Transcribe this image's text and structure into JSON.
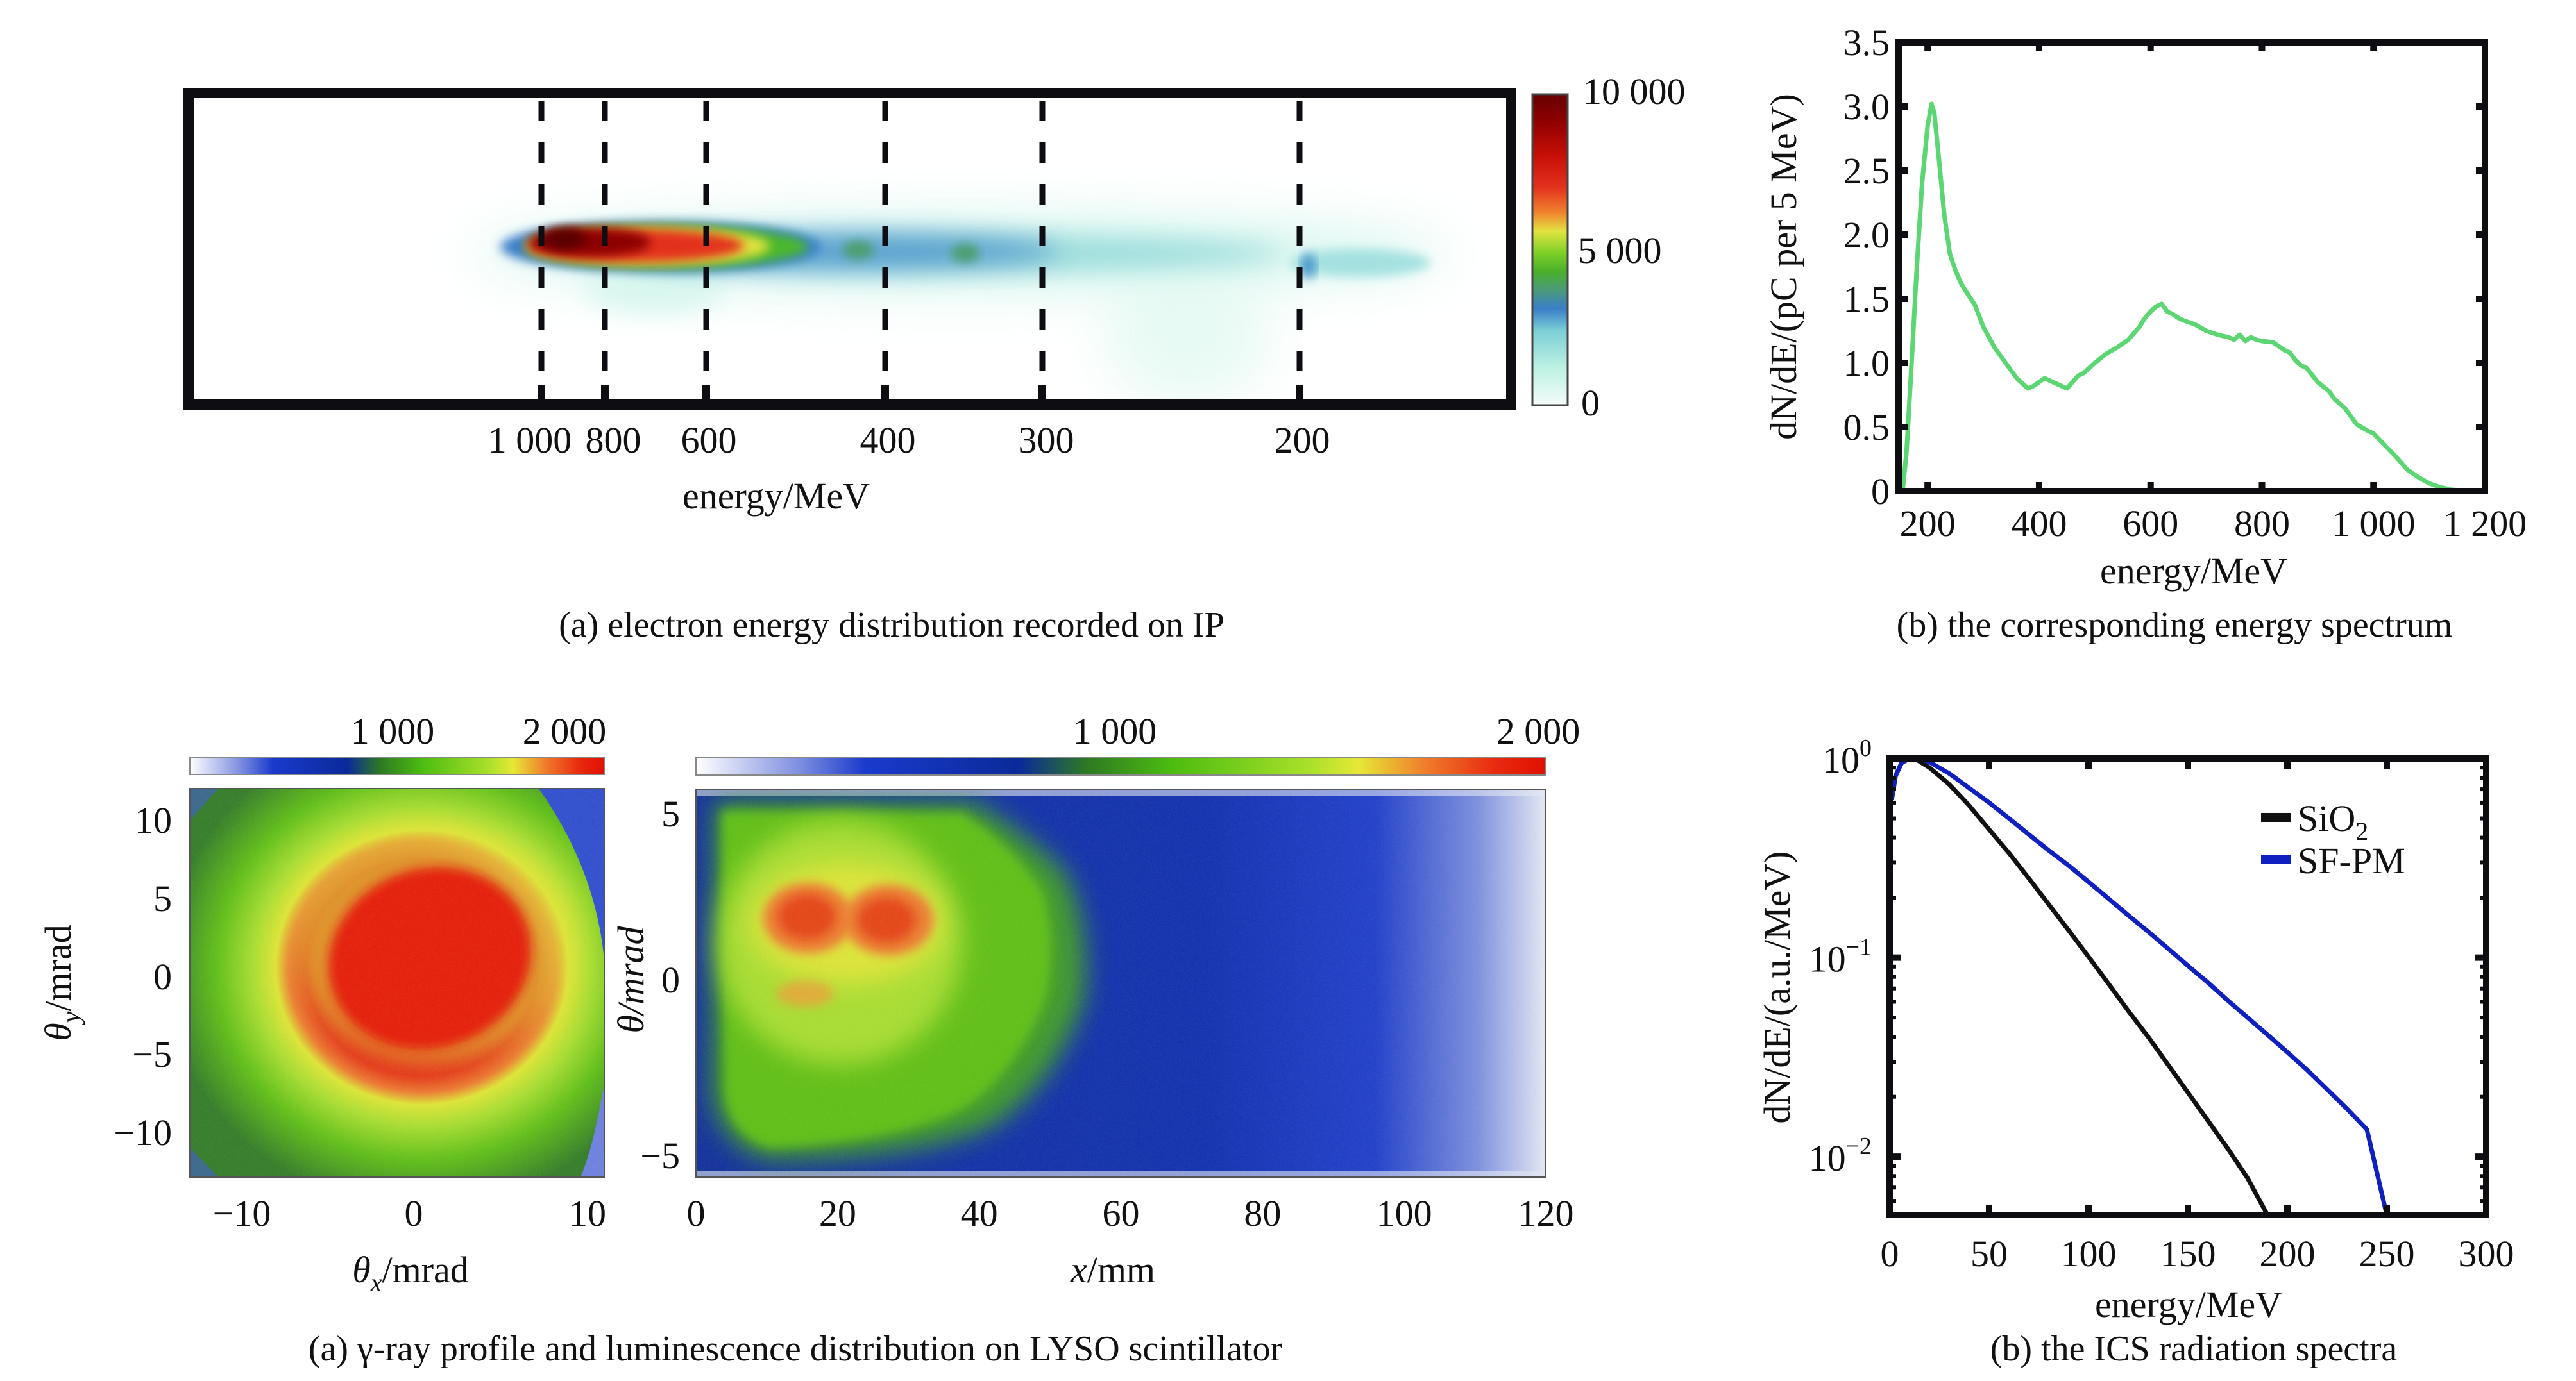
{
  "figure": {
    "panels": {
      "top_left": {
        "caption": "(a) electron energy distribution recorded on IP",
        "xlabel": "energy/MeV",
        "energy_markers": [
          "1 000",
          "800",
          "600",
          "400",
          "300",
          "200"
        ],
        "colorbar": {
          "ticks": [
            "10 000",
            "5 000",
            "0"
          ],
          "range": [
            0,
            10000
          ]
        }
      },
      "top_right": {
        "caption": "(b) the corresponding energy spectrum"
      },
      "bottom_left": {
        "caption": "(a) γ-ray profile and luminescence distribution on LYSO scintillator",
        "profile": {
          "xlabel_main": "θ",
          "xlabel_sub": "x",
          "xlabel_unit": "/mrad",
          "ylabel_main": "θ",
          "ylabel_sub": "y",
          "ylabel_unit": "/mrad",
          "xticks": [
            "−10",
            "0",
            "10"
          ],
          "yticks": [
            "10",
            "5",
            "0",
            "−5",
            "−10"
          ],
          "colorbar_ticks": [
            "1 000",
            "2 000"
          ]
        },
        "luminescence": {
          "xlabel_main": "x",
          "xlabel_unit": "/mm",
          "ylabel": "θ/mrad",
          "xticks": [
            "0",
            "20",
            "40",
            "60",
            "80",
            "100",
            "120"
          ],
          "yticks": [
            "5",
            "0",
            "−5"
          ],
          "colorbar_ticks": [
            "1 000",
            "2 000"
          ]
        }
      },
      "bottom_right": {
        "caption": "(b) the ICS radiation spectra"
      }
    }
  },
  "chart_data": [
    {
      "id": "electron-energy-heatmap",
      "type": "heatmap",
      "title": "(a) electron energy distribution recorded on IP",
      "xlabel": "energy/MeV",
      "ylabel": "",
      "x_tick_labels": [
        "1 000",
        "800",
        "600",
        "400",
        "300",
        "200"
      ],
      "x_tick_values": [
        1000,
        800,
        600,
        400,
        300,
        200
      ],
      "colorbar": {
        "min": 0,
        "max": 10000,
        "ticks": [
          0,
          5000,
          10000
        ],
        "tick_labels": [
          "0",
          "5 000",
          "10 000"
        ],
        "colormap": [
          "#f4fcfb",
          "#a6ecdc",
          "#5fb0d0",
          "#3a7fc8",
          "#4c9e6a",
          "#4cb82a",
          "#a5d92c",
          "#e2e340",
          "#f0822e",
          "#e3321e",
          "#c40f0a",
          "#6a0000"
        ]
      },
      "features": [
        {
          "desc": "peak intensity core",
          "energy_range_MeV": [
            600,
            1000
          ],
          "max_value": 10000
        },
        {
          "desc": "decaying tail",
          "energy_range_MeV": [
            200,
            600
          ],
          "value_range": [
            1000,
            4000
          ]
        },
        {
          "desc": "faint low-energy blob",
          "energy_range_MeV": [
            160,
            200
          ],
          "value_range": [
            500,
            1500
          ]
        }
      ],
      "grid": false,
      "dashed_markers_at_MeV": [
        1000,
        800,
        600,
        400,
        300,
        200
      ]
    },
    {
      "id": "energy-spectrum",
      "type": "line",
      "title": "(b) the corresponding energy spectrum",
      "xlabel": "energy/MeV",
      "ylabel": "dN/dE/(pC per 5 MeV)",
      "xlim": [
        148,
        1200
      ],
      "ylim": [
        0,
        3.5
      ],
      "xticks": [
        200,
        400,
        600,
        800,
        1000,
        1200
      ],
      "xtick_labels": [
        "200",
        "400",
        "600",
        "800",
        "1 000",
        "1 200"
      ],
      "yticks": [
        0,
        0.5,
        1.0,
        1.5,
        2.0,
        2.5,
        3.0,
        3.5
      ],
      "ytick_labels": [
        "0",
        "0.5",
        "1.0",
        "1.5",
        "2.0",
        "2.5",
        "3.0",
        "3.5"
      ],
      "grid": false,
      "series": [
        {
          "name": "spectrum",
          "color": "#5cd672",
          "x": [
            155,
            162,
            170,
            180,
            190,
            200,
            207,
            212,
            220,
            230,
            240,
            250,
            260,
            270,
            285,
            300,
            320,
            340,
            360,
            380,
            390,
            400,
            410,
            420,
            430,
            440,
            450,
            460,
            470,
            480,
            500,
            520,
            540,
            560,
            580,
            590,
            600,
            610,
            620,
            630,
            640,
            650,
            660,
            680,
            700,
            720,
            740,
            750,
            760,
            770,
            780,
            790,
            800,
            820,
            840,
            850,
            860,
            870,
            880,
            900,
            920,
            930,
            950,
            970,
            990,
            1000,
            1020,
            1040,
            1060,
            1080,
            1100,
            1120,
            1140,
            1160,
            1180,
            1200
          ],
          "y": [
            0.0,
            0.3,
            0.9,
            1.7,
            2.4,
            2.85,
            3.02,
            2.95,
            2.6,
            2.15,
            1.85,
            1.72,
            1.62,
            1.55,
            1.45,
            1.28,
            1.12,
            1.0,
            0.88,
            0.8,
            0.82,
            0.85,
            0.88,
            0.86,
            0.84,
            0.82,
            0.8,
            0.85,
            0.9,
            0.92,
            1.0,
            1.07,
            1.12,
            1.18,
            1.28,
            1.35,
            1.4,
            1.44,
            1.46,
            1.4,
            1.38,
            1.35,
            1.33,
            1.3,
            1.25,
            1.22,
            1.2,
            1.18,
            1.22,
            1.17,
            1.2,
            1.18,
            1.17,
            1.16,
            1.1,
            1.08,
            1.02,
            0.98,
            0.96,
            0.85,
            0.78,
            0.72,
            0.64,
            0.52,
            0.47,
            0.45,
            0.36,
            0.27,
            0.17,
            0.11,
            0.06,
            0.03,
            0.01,
            0.005,
            0.0,
            0.0
          ]
        }
      ]
    },
    {
      "id": "gamma-ray-profile",
      "type": "heatmap",
      "title": "γ-ray profile on LYSO scintillator",
      "xlabel": "θx/mrad",
      "ylabel": "θy/mrad",
      "xlim": [
        -13,
        11
      ],
      "ylim": [
        -13,
        12
      ],
      "xticks": [
        -10,
        0,
        10
      ],
      "yticks": [
        10,
        5,
        0,
        -5,
        -10
      ],
      "colorbar": {
        "min": 0,
        "max": 2000,
        "ticks": [
          1000,
          2000
        ],
        "tick_labels": [
          "1 000",
          "2 000"
        ],
        "placement": "top"
      },
      "features": [
        {
          "desc": "central elliptical high-intensity spot",
          "center_mrad": [
            1,
            0.5
          ],
          "semi_axes_mrad": [
            7,
            6
          ],
          "value": 2000
        },
        {
          "desc": "green surrounding halo",
          "value_range": [
            1000,
            1500
          ]
        },
        {
          "desc": "blue clipped region at right edge",
          "value": 500
        }
      ],
      "grid": false
    },
    {
      "id": "luminescence-distribution",
      "type": "heatmap",
      "title": "luminescence distribution on LYSO scintillator",
      "xlabel": "x/mm",
      "ylabel": "θ/mrad",
      "xlim": [
        0,
        120
      ],
      "ylim": [
        -5.5,
        5.5
      ],
      "xticks": [
        0,
        20,
        40,
        60,
        80,
        100,
        120
      ],
      "yticks": [
        5,
        0,
        -5
      ],
      "colorbar": {
        "min": 0,
        "max": 2000,
        "ticks": [
          1000,
          2000
        ],
        "tick_labels": [
          "1 000",
          "2 000"
        ],
        "placement": "top"
      },
      "features": [
        {
          "desc": "hot spots",
          "centers": [
            [
              25,
              2
            ],
            [
              38,
              2
            ]
          ],
          "value": 1800
        },
        {
          "desc": "green region",
          "x_range_mm": [
            2,
            75
          ],
          "value_range": [
            1100,
            1500
          ]
        },
        {
          "desc": "blue background",
          "x_range_mm": [
            75,
            120
          ],
          "value_range": [
            200,
            800
          ]
        }
      ],
      "grid": false
    },
    {
      "id": "ics-radiation-spectra",
      "type": "line",
      "title": "(b) the ICS radiation spectra",
      "xlabel": "energy/MeV",
      "ylabel": "dN/dE/(a.u./MeV)",
      "yscale": "log",
      "xlim": [
        0,
        300
      ],
      "ylim": [
        0.0051,
        1.0
      ],
      "xticks": [
        0,
        50,
        100,
        150,
        200,
        250,
        300
      ],
      "xtick_labels": [
        "0",
        "50",
        "100",
        "150",
        "200",
        "250",
        "300"
      ],
      "yticks": [
        1,
        0.1,
        0.01
      ],
      "ytick_labels": [
        {
          "base": "10",
          "exp": "0"
        },
        {
          "base": "10",
          "exp": "−1"
        },
        {
          "base": "10",
          "exp": "−2"
        }
      ],
      "legend": {
        "placement": "top-right"
      },
      "grid": false,
      "series": [
        {
          "name": "SiO",
          "name_subscript": "2",
          "color": "#111111",
          "x": [
            1,
            3,
            6,
            10,
            14,
            20,
            30,
            40,
            50,
            60,
            70,
            80,
            90,
            100,
            110,
            120,
            130,
            140,
            150,
            160,
            170,
            180,
            190
          ],
          "y": [
            0.62,
            0.82,
            0.95,
            1.0,
            0.98,
            0.9,
            0.74,
            0.58,
            0.44,
            0.335,
            0.25,
            0.185,
            0.137,
            0.101,
            0.074,
            0.054,
            0.04,
            0.029,
            0.021,
            0.0152,
            0.011,
            0.0078,
            0.0051
          ]
        },
        {
          "name": "SF-PM",
          "color": "#1020c0",
          "x": [
            1,
            3,
            6,
            10,
            15,
            20,
            30,
            40,
            50,
            60,
            70,
            80,
            90,
            100,
            110,
            120,
            130,
            140,
            150,
            160,
            170,
            180,
            190,
            200,
            210,
            220,
            230,
            240,
            250
          ],
          "y": [
            0.62,
            0.82,
            0.95,
            1.0,
            1.0,
            0.96,
            0.84,
            0.71,
            0.6,
            0.5,
            0.415,
            0.345,
            0.29,
            0.24,
            0.198,
            0.163,
            0.135,
            0.111,
            0.091,
            0.075,
            0.061,
            0.05,
            0.041,
            0.0335,
            0.0272,
            0.0218,
            0.0174,
            0.0137,
            0.0051
          ]
        }
      ]
    }
  ]
}
